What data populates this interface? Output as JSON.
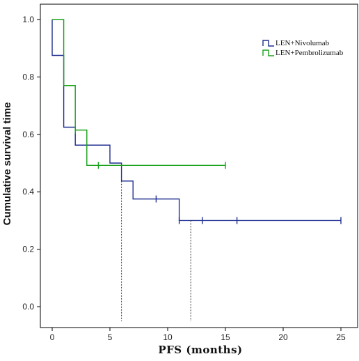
{
  "chart_data": {
    "type": "line",
    "xlabel": "PFS (months)",
    "ylabel": "Cumulative survival time",
    "xlim": [
      0,
      25
    ],
    "ylim": [
      0,
      1
    ],
    "x_ticks": [
      "0",
      "5",
      "10",
      "15",
      "20",
      "25"
    ],
    "y_ticks": [
      "0.0",
      "0.2",
      "0.4",
      "0.6",
      "0.8",
      "1.0"
    ],
    "grid": false,
    "legend_position": "top-right",
    "series": [
      {
        "name": "LEN+Nivolumab",
        "color": "#1f2f8f",
        "steps": [
          [
            0,
            0.875
          ],
          [
            1,
            0.625
          ],
          [
            2,
            0.5625
          ],
          [
            5,
            0.5
          ],
          [
            6,
            0.4375
          ],
          [
            7,
            0.375
          ],
          [
            11,
            0.3
          ],
          [
            25,
            0.3
          ]
        ],
        "censored": [
          [
            9,
            0.375
          ],
          [
            11,
            0.3
          ],
          [
            13,
            0.3
          ],
          [
            16,
            0.3
          ],
          [
            25,
            0.3
          ]
        ]
      },
      {
        "name": "LEN+Pembrolizumab",
        "color": "#1aa21a",
        "steps": [
          [
            0,
            1.0
          ],
          [
            1,
            0.77
          ],
          [
            2,
            0.615
          ],
          [
            3,
            0.492
          ],
          [
            15,
            0.492
          ]
        ],
        "censored": [
          [
            2,
            0.615
          ],
          [
            4,
            0.492
          ],
          [
            15,
            0.492
          ]
        ]
      }
    ],
    "reference_lines": [
      {
        "x": 6,
        "y": 0.4375
      },
      {
        "x": 12,
        "y": 0.3
      }
    ]
  }
}
